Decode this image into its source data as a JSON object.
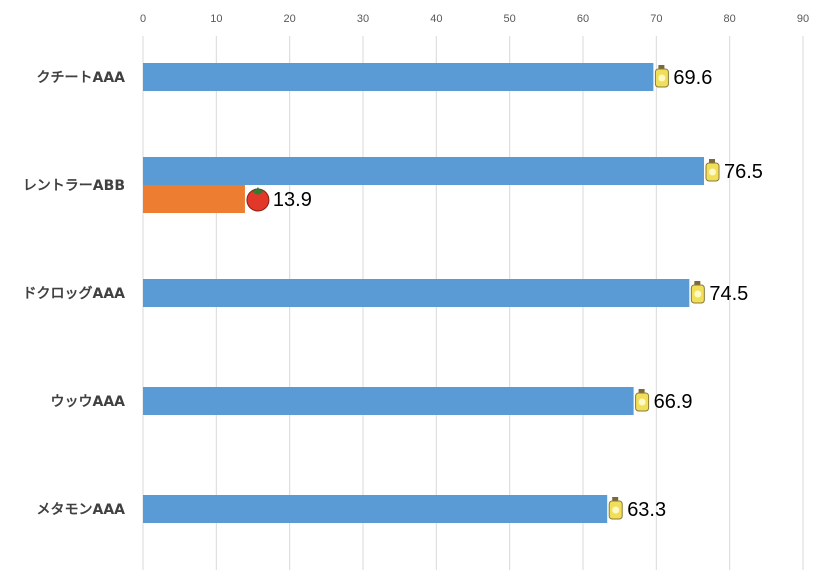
{
  "chart_data": {
    "type": "bar",
    "orientation": "horizontal",
    "categories": [
      "クチートAAA",
      "レントラーABB",
      "ドクロッグAAA",
      "ウッウAAA",
      "メタモンAAA"
    ],
    "series": [
      {
        "values": [
          69.6,
          76.5,
          74.5,
          66.9,
          63.3
        ],
        "color": "#5b9bd5",
        "icon": "honey-jar-icon"
      },
      {
        "values": [
          null,
          13.9,
          null,
          null,
          null
        ],
        "color": "#ed7d31",
        "icon": "tomato-icon"
      }
    ],
    "xlim": [
      0,
      90
    ],
    "xticks": [
      0,
      10,
      20,
      30,
      40,
      50,
      60,
      70,
      80,
      90
    ],
    "x_axis_position": "top",
    "grid": true,
    "legend": "none",
    "gridline_color": "#d9d9d9"
  }
}
